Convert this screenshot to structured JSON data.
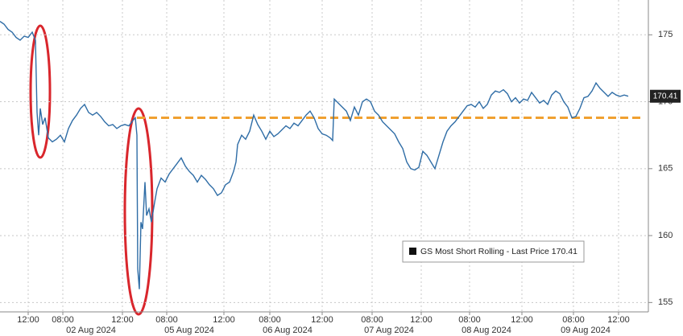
{
  "chart_data": {
    "type": "line",
    "x": [
      0,
      5,
      10,
      15,
      20,
      25,
      30,
      35,
      40,
      44,
      46,
      48,
      50,
      53,
      56,
      60,
      65,
      70,
      75,
      80,
      85,
      90,
      95,
      100,
      105,
      110,
      115,
      120,
      125,
      130,
      135,
      140,
      145,
      150,
      155,
      160,
      165,
      168,
      170,
      171,
      173,
      175,
      177,
      180,
      182,
      185,
      188,
      192,
      195,
      200,
      205,
      210,
      215,
      220,
      225,
      230,
      235,
      240,
      245,
      250,
      255,
      260,
      265,
      270,
      275,
      280,
      285,
      290,
      293,
      295,
      300,
      305,
      310,
      315,
      320,
      325,
      330,
      335,
      340,
      345,
      350,
      355,
      360,
      365,
      370,
      375,
      380,
      385,
      390,
      395,
      400,
      405,
      410,
      413,
      415,
      420,
      425,
      430,
      435,
      440,
      445,
      450,
      455,
      460,
      465,
      470,
      475,
      480,
      485,
      490,
      495,
      500,
      505,
      510,
      515,
      520,
      525,
      530,
      535,
      540,
      545,
      550,
      555,
      560,
      565,
      570,
      575,
      580,
      585,
      590,
      595,
      600,
      605,
      610,
      615,
      620,
      625,
      630,
      635,
      640,
      645,
      650,
      655,
      660,
      665,
      670,
      675,
      680,
      685,
      690,
      695,
      700,
      705,
      710,
      715,
      720,
      725,
      730,
      735,
      740,
      745,
      750,
      755,
      760,
      765,
      770,
      775,
      780
    ],
    "series": [
      {
        "name": "GS Most Short Rolling - Last Price 170.41",
        "color": "#2f6da6",
        "values": [
          176,
          175.8,
          175.4,
          175.2,
          174.8,
          174.6,
          174.9,
          174.8,
          175.2,
          174.6,
          169.2,
          167.5,
          169.5,
          168.3,
          168.8,
          167.3,
          167.0,
          167.2,
          167.5,
          167.0,
          168.0,
          168.6,
          169.0,
          169.5,
          169.8,
          169.2,
          169.0,
          169.2,
          168.9,
          168.5,
          168.2,
          168.3,
          168.0,
          168.2,
          168.3,
          168.2,
          168.6,
          168.8,
          167.5,
          157.5,
          156.0,
          161.0,
          160.5,
          164.0,
          161.5,
          162.0,
          161.0,
          162.5,
          163.5,
          164.3,
          164.0,
          164.6,
          165.0,
          165.4,
          165.8,
          165.2,
          164.8,
          164.5,
          164.0,
          164.5,
          164.2,
          163.8,
          163.5,
          163.0,
          163.2,
          163.8,
          164.0,
          164.8,
          165.5,
          166.8,
          167.5,
          167.2,
          167.8,
          169.0,
          168.3,
          167.8,
          167.2,
          167.8,
          167.4,
          167.6,
          167.9,
          168.2,
          168.0,
          168.4,
          168.2,
          168.6,
          169.0,
          169.3,
          168.8,
          168.0,
          167.6,
          167.5,
          167.3,
          167.1,
          170.2,
          169.9,
          169.6,
          169.3,
          168.6,
          169.6,
          169.0,
          170.0,
          170.2,
          170.0,
          169.3,
          169.0,
          168.5,
          168.2,
          167.9,
          167.6,
          167.0,
          166.5,
          165.5,
          165.0,
          164.9,
          165.1,
          166.3,
          166.0,
          165.5,
          165.0,
          166.0,
          167.0,
          167.8,
          168.2,
          168.5,
          168.9,
          169.3,
          169.7,
          169.8,
          169.6,
          170.0,
          169.5,
          169.8,
          170.5,
          170.8,
          170.7,
          170.9,
          170.6,
          170.0,
          170.3,
          169.9,
          170.2,
          170.1,
          170.7,
          170.3,
          169.9,
          170.1,
          169.8,
          170.5,
          170.8,
          170.6,
          170.0,
          169.6,
          168.8,
          168.9,
          169.5,
          170.3,
          170.4,
          170.8,
          171.4,
          171.0,
          170.7,
          170.4,
          170.7,
          170.5,
          170.4,
          170.5,
          170.41
        ]
      }
    ],
    "last_price": {
      "value": 170.41,
      "label": "170.41"
    },
    "reference_line": {
      "value": 168.8,
      "color": "#f0a030"
    },
    "xlim": [
      0,
      805
    ],
    "xticks": [
      {
        "value": 35,
        "label": "12:00"
      },
      {
        "value": 78,
        "label": "08:00"
      },
      {
        "value": 152,
        "label": "12:00"
      },
      {
        "value": 207,
        "label": "08:00"
      },
      {
        "value": 278,
        "label": "12:00"
      },
      {
        "value": 335,
        "label": "08:00"
      },
      {
        "value": 400,
        "label": "12:00"
      },
      {
        "value": 462,
        "label": "08:00"
      },
      {
        "value": 523,
        "label": "12:00"
      },
      {
        "value": 583,
        "label": "08:00"
      },
      {
        "value": 648,
        "label": "12:00"
      },
      {
        "value": 712,
        "label": "08:00"
      },
      {
        "value": 768,
        "label": "12:00"
      }
    ],
    "date_labels": [
      {
        "value": 113,
        "label": "02 Aug 2024"
      },
      {
        "value": 235,
        "label": "05 Aug 2024"
      },
      {
        "value": 357,
        "label": "06 Aug 2024"
      },
      {
        "value": 483,
        "label": "07 Aug 2024"
      },
      {
        "value": 604,
        "label": "08 Aug 2024"
      },
      {
        "value": 727,
        "label": "09 Aug 2024"
      }
    ],
    "ylim": [
      154.3,
      177.6
    ],
    "yticks": [
      155,
      160,
      165,
      170,
      175
    ],
    "grid": true
  }
}
